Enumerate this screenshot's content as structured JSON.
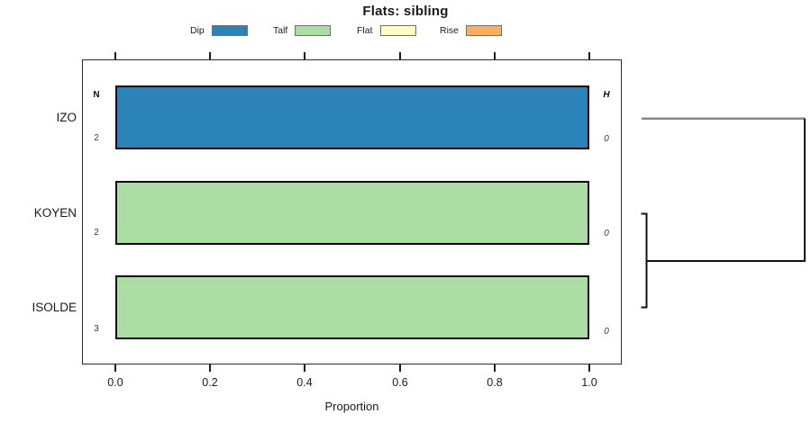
{
  "title": "Flats: sibling",
  "legend": [
    {
      "label": "Dip",
      "color": "#2B83BA"
    },
    {
      "label": "Talf",
      "color": "#ABDDA4"
    },
    {
      "label": "Flat",
      "color": "#FFFFBF"
    },
    {
      "label": "Rise",
      "color": "#FDAE61"
    }
  ],
  "columns": {
    "n_header": "N",
    "h_header": "H"
  },
  "rows": [
    {
      "label": "IZO",
      "n": "2",
      "h": "0",
      "segment": "Dip",
      "value": 1,
      "color": "#2B83BA"
    },
    {
      "label": "KOYEN",
      "n": "2",
      "h": "0",
      "segment": "Talf",
      "value": 1,
      "color": "#ABDDA4"
    },
    {
      "label": "ISOLDE",
      "n": "3",
      "h": "0",
      "segment": "Talf",
      "value": 1,
      "color": "#ABDDA4"
    }
  ],
  "axis": {
    "xlabel": "Proportion",
    "xticks": [
      "0.0",
      "0.2",
      "0.4",
      "0.6",
      "0.8",
      "1.0"
    ]
  },
  "chart_data": {
    "type": "bar",
    "orientation": "horizontal",
    "title": "Flats: sibling",
    "xlabel": "Proportion",
    "ylabel": "",
    "xlim": [
      0,
      1
    ],
    "xticks": [
      0,
      0.2,
      0.4,
      0.6,
      0.8,
      1
    ],
    "categories": [
      "IZO",
      "KOYEN",
      "ISOLDE"
    ],
    "series": [
      {
        "name": "Dip",
        "color": "#2B83BA",
        "values": [
          1,
          0,
          0
        ]
      },
      {
        "name": "Talf",
        "color": "#ABDDA4",
        "values": [
          0,
          1,
          1
        ]
      },
      {
        "name": "Flat",
        "color": "#FFFFBF",
        "values": [
          0,
          0,
          0
        ]
      },
      {
        "name": "Rise",
        "color": "#FDAE61",
        "values": [
          0,
          0,
          0
        ]
      }
    ],
    "row_annotations": {
      "N": [
        2,
        2,
        3
      ],
      "H": [
        0,
        0,
        0
      ]
    },
    "legend_position": "top",
    "grid": false,
    "bar_border_color": "#000000",
    "dendrogram": {
      "side": "right",
      "leaf_order": [
        "IZO",
        "KOYEN",
        "ISOLDE"
      ],
      "merges": [
        {
          "members": [
            "KOYEN",
            "ISOLDE"
          ],
          "relative_height": 0.03
        },
        {
          "members": [
            "IZO",
            "KOYEN+ISOLDE"
          ],
          "relative_height": 1.0
        }
      ],
      "izo_branch_color": "#888888",
      "branch_color": "#111111"
    }
  }
}
